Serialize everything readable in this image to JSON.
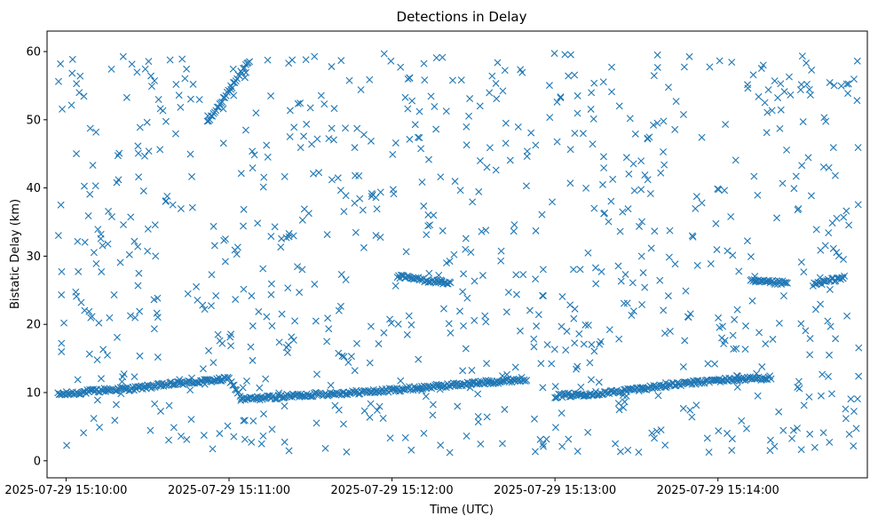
{
  "chart_data": {
    "type": "scatter",
    "title": "Detections in Delay",
    "xlabel": "Time (UTC)",
    "ylabel": "Bistatic Delay (km)",
    "marker": "x",
    "color": "#1f77b4",
    "grid": false,
    "legend": "none",
    "xlim": [
      "2025-07-29 15:09:53",
      "2025-07-29 15:14:55"
    ],
    "ylim": [
      -2.5,
      63
    ],
    "xticks": [
      "2025-07-29 15:10:00",
      "2025-07-29 15:11:00",
      "2025-07-29 15:12:00",
      "2025-07-29 15:13:00",
      "2025-07-29 15:14:00"
    ],
    "yticks": [
      0,
      10,
      20,
      30,
      40,
      50,
      60
    ],
    "target_tracks": [
      {
        "name": "",
        "points": [
          [
            "2025-07-29 15:09:57",
            9.7
          ],
          [
            "2025-07-29 15:10:15",
            10.4
          ],
          [
            "2025-07-29 15:10:25",
            10.6
          ],
          [
            "2025-07-29 15:10:40",
            11.3
          ],
          [
            "2025-07-29 15:11:00",
            12.0
          ],
          [
            "2025-07-29 15:11:05",
            9.0
          ],
          [
            "2025-07-29 15:11:30",
            9.7
          ],
          [
            "2025-07-29 15:11:55",
            10.2
          ],
          [
            "2025-07-29 15:12:25",
            11.2
          ],
          [
            "2025-07-29 15:12:50",
            12.0
          ],
          [
            "2025-07-29 15:13:00",
            9.5
          ],
          [
            "2025-07-29 15:13:20",
            10.0
          ],
          [
            "2025-07-29 15:13:40",
            11.0
          ],
          [
            "2025-07-29 15:14:00",
            11.8
          ],
          [
            "2025-07-29 15:14:20",
            12.2
          ]
        ]
      },
      {
        "name": "",
        "points": [
          [
            "2025-07-29 15:12:02",
            27.0
          ],
          [
            "2025-07-29 15:12:22",
            26.0
          ]
        ]
      },
      {
        "name": "",
        "points": [
          [
            "2025-07-29 15:14:12",
            26.3
          ],
          [
            "2025-07-29 15:14:26",
            26.0
          ]
        ]
      },
      {
        "name": "",
        "points": [
          [
            "2025-07-29 15:14:35",
            25.8
          ],
          [
            "2025-07-29 15:14:47",
            27.0
          ]
        ]
      },
      {
        "name": "",
        "points": [
          [
            "2025-07-29 15:10:52",
            49.5
          ],
          [
            "2025-07-29 15:11:08",
            59.0
          ]
        ]
      }
    ],
    "clutter_points": 850
  }
}
